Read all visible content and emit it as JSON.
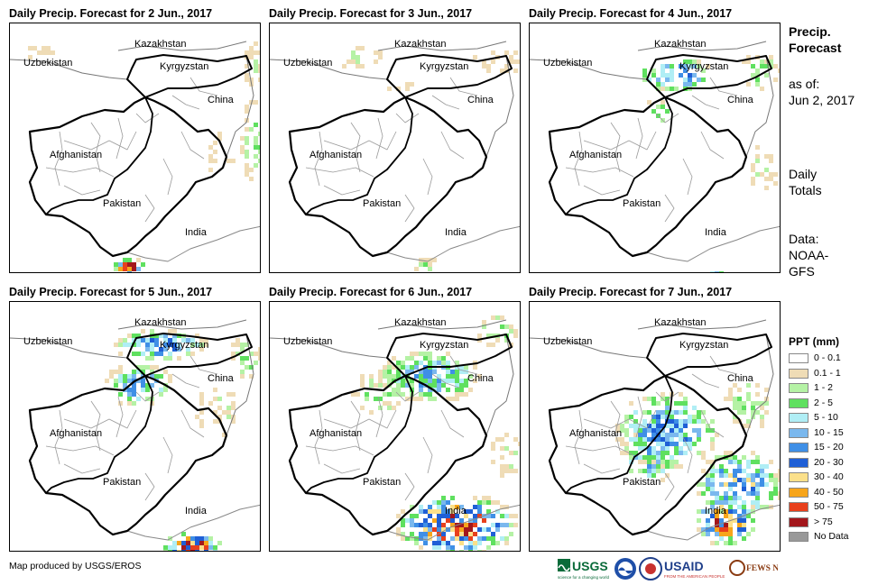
{
  "panels": [
    {
      "title": "Daily Precip. Forecast for 2 Jun., 2017"
    },
    {
      "title": "Daily Precip. Forecast for 3 Jun., 2017"
    },
    {
      "title": "Daily Precip. Forecast for 4 Jun., 2017"
    },
    {
      "title": "Daily Precip. Forecast for 5 Jun., 2017"
    },
    {
      "title": "Daily Precip. Forecast for 6 Jun., 2017"
    },
    {
      "title": "Daily Precip. Forecast for 7 Jun., 2017"
    }
  ],
  "countries": {
    "kazakhstan": "Kazakhstan",
    "uzbekistan": "Uzbekistan",
    "kyrgyzstan": "Kyrgyzstan",
    "china": "China",
    "afghanistan": "Afghanistan",
    "pakistan": "Pakistan",
    "india": "India"
  },
  "side": {
    "title_line1": "Precip.",
    "title_line2": "Forecast",
    "asof_line1": "as of:",
    "asof_line2": "Jun 2, 2017",
    "daily_line1": "Daily",
    "daily_line2": "Totals",
    "data_line1": "Data:",
    "data_line2": "NOAA-",
    "data_line3": "GFS"
  },
  "legend": {
    "title": "PPT (mm)",
    "items": [
      {
        "label": "0 - 0.1",
        "color": "#ffffff"
      },
      {
        "label": "0.1 - 1",
        "color": "#efdcb6"
      },
      {
        "label": "1 - 2",
        "color": "#b5f2a5"
      },
      {
        "label": "2 - 5",
        "color": "#5fe05f"
      },
      {
        "label": "5 - 10",
        "color": "#b0eef5"
      },
      {
        "label": "10 - 15",
        "color": "#7ab8ee"
      },
      {
        "label": "15 - 20",
        "color": "#3f8fe6"
      },
      {
        "label": "20 - 30",
        "color": "#1f5fd6"
      },
      {
        "label": "30 - 40",
        "color": "#fbe08a"
      },
      {
        "label": "40 - 50",
        "color": "#f7a51b"
      },
      {
        "label": "50 - 75",
        "color": "#e8401c"
      },
      {
        "label": "> 75",
        "color": "#a3171c"
      },
      {
        "label": "No Data",
        "color": "#999999"
      }
    ]
  },
  "credit": "Map produced by USGS/EROS",
  "logos": {
    "usgs": "USGS",
    "usaid": "USAID",
    "fewsnet": "FEWS NET",
    "usgs_tagline": "science for a changing world",
    "usaid_tagline": "FROM THE AMERICAN PEOPLE"
  }
}
